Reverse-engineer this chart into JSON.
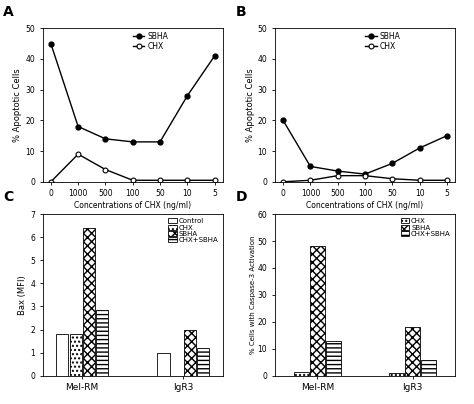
{
  "panel_A": {
    "x_labels": [
      "0",
      "1000",
      "500",
      "100",
      "50",
      "10",
      "5"
    ],
    "x_positions": [
      0,
      1,
      2,
      3,
      4,
      5,
      6
    ],
    "SBHA": [
      45,
      18,
      14,
      13,
      13,
      28,
      41
    ],
    "CHX": [
      0,
      9,
      4,
      0.5,
      0.5,
      0.5,
      0.5
    ],
    "ylabel": "% Apoptotic Cells",
    "xlabel": "Concentrations of CHX (ng/ml)",
    "ylim": [
      0,
      50
    ],
    "yticks": [
      0,
      10,
      20,
      30,
      40,
      50
    ]
  },
  "panel_B": {
    "x_labels": [
      "0",
      "1000",
      "500",
      "100",
      "50",
      "10",
      "5"
    ],
    "x_positions": [
      0,
      1,
      2,
      3,
      4,
      5,
      6
    ],
    "SBHA": [
      20,
      5,
      3.5,
      2.5,
      6,
      11,
      15
    ],
    "CHX": [
      0,
      0.5,
      2,
      2,
      1,
      0.5,
      0.5
    ],
    "ylabel": "% Apoptotic Cells",
    "xlabel": "Concentrations of CHX (ng/ml)",
    "ylim": [
      0,
      50
    ],
    "yticks": [
      0,
      10,
      20,
      30,
      40,
      50
    ]
  },
  "panel_C": {
    "groups": [
      "Mel-RM",
      "IgR3"
    ],
    "categories": [
      "Control",
      "CHX",
      "SBHA",
      "CHX+SBHA"
    ],
    "values": {
      "Mel-RM": [
        1.8,
        1.8,
        6.4,
        2.85
      ],
      "IgR3": [
        1.0,
        0,
        2.0,
        1.2
      ]
    },
    "ylabel": "Bax (MFI)",
    "ylim": [
      0,
      7
    ],
    "yticks": [
      0,
      1,
      2,
      3,
      4,
      5,
      6,
      7
    ]
  },
  "panel_D": {
    "groups": [
      "Mel-RM",
      "IgR3"
    ],
    "categories": [
      "CHX",
      "SBHA",
      "CHX+SBHA"
    ],
    "values": {
      "Mel-RM": [
        1.5,
        48,
        13
      ],
      "IgR3": [
        1.0,
        18,
        6
      ]
    },
    "ylabel": "% Cells with Caspase-3 Activation",
    "ylim": [
      0,
      60
    ],
    "yticks": [
      0,
      10,
      20,
      30,
      40,
      50,
      60
    ]
  }
}
